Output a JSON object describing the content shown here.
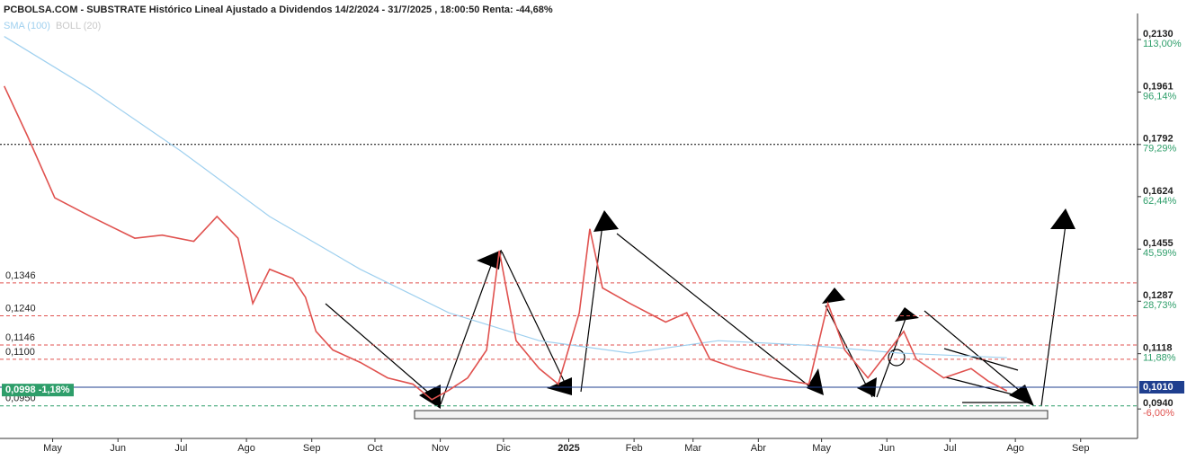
{
  "chart_data": {
    "type": "line",
    "title": "PCBOLSA.COM - SUBSTRATE Histórico Lineal Ajustado a Dividendos 14/2/2024 - 31/7/2025 , 18:00:50 Renta: -44,68%",
    "series": [
      {
        "name": "SMA (100)",
        "color": "#9fd0ef",
        "x": [
          -23,
          18,
          61,
          103,
          146,
          188,
          231,
          274,
          316,
          359,
          402,
          453
        ],
        "values": [
          0.214,
          0.197,
          0.177,
          0.156,
          0.139,
          0.125,
          0.116,
          0.112,
          0.116,
          0.1145,
          0.112,
          0.1105
        ]
      },
      {
        "name": "BOLL (20)",
        "color": "#c8c8c8",
        "x": [
          -23,
          -12,
          1,
          18,
          39,
          52,
          67,
          78,
          88,
          95,
          103,
          114,
          120,
          125,
          133,
          146,
          159,
          171,
          180,
          188,
          197,
          206,
          212,
          220,
          231,
          240,
          250,
          255,
          261,
          274,
          291,
          301,
          312,
          325,
          342,
          359,
          368,
          376,
          387,
          404,
          410,
          423,
          436,
          444,
          453
        ],
        "values": [
          0.198,
          0.182,
          0.162,
          0.156,
          0.149,
          0.15,
          0.148,
          0.156,
          0.149,
          0.128,
          0.139,
          0.136,
          0.13,
          0.119,
          0.113,
          0.109,
          0.104,
          0.102,
          0.097,
          0.1,
          0.104,
          0.113,
          0.145,
          0.116,
          0.107,
          0.102,
          0.125,
          0.152,
          0.133,
          0.128,
          0.122,
          0.125,
          0.11,
          0.107,
          0.104,
          0.102,
          0.128,
          0.113,
          0.104,
          0.119,
          0.11,
          0.104,
          0.107,
          0.103,
          0.0998
        ]
      }
    ],
    "price_color": "#e0524f",
    "xlim": [
      -25,
      515
    ],
    "xticks": [
      {
        "value": 0,
        "label": "May"
      },
      {
        "value": 31,
        "label": "Jun"
      },
      {
        "value": 61,
        "label": "Jul"
      },
      {
        "value": 92,
        "label": "Ago"
      },
      {
        "value": 123,
        "label": "Sep"
      },
      {
        "value": 153,
        "label": "Oct"
      },
      {
        "value": 184,
        "label": "Nov"
      },
      {
        "value": 214,
        "label": "Dic"
      },
      {
        "value": 245,
        "label": "2025"
      },
      {
        "value": 276,
        "label": "Feb"
      },
      {
        "value": 304,
        "label": "Mar"
      },
      {
        "value": 335,
        "label": "Abr"
      },
      {
        "value": 365,
        "label": "May"
      },
      {
        "value": 396,
        "label": "Jun"
      },
      {
        "value": 426,
        "label": "Jul"
      },
      {
        "value": 457,
        "label": "Ago"
      },
      {
        "value": 488,
        "label": "Sep"
      }
    ],
    "ylim": [
      0.0845,
      0.2214
    ],
    "yticks": [
      {
        "value": 0.213,
        "label": "0,2130",
        "pct": "113,00%",
        "color": "#2e9e6a"
      },
      {
        "value": 0.1961,
        "label": "0,1961",
        "pct": "96,14%",
        "color": "#2e9e6a"
      },
      {
        "value": 0.1792,
        "label": "0,1792",
        "pct": "79,29%",
        "color": "#2e9e6a"
      },
      {
        "value": 0.1624,
        "label": "0,1624",
        "pct": "62,44%",
        "color": "#2e9e6a"
      },
      {
        "value": 0.1455,
        "label": "0,1455",
        "pct": "45,59%",
        "color": "#2e9e6a"
      },
      {
        "value": 0.1287,
        "label": "0,1287",
        "pct": "28,73%",
        "color": "#2e9e6a"
      },
      {
        "value": 0.1118,
        "label": "0,1118",
        "pct": "11,88%",
        "color": "#2e9e6a"
      },
      {
        "value": 0.094,
        "label": "0,0940",
        "pct": "-6,00%",
        "color": "#e0524f"
      }
    ],
    "levels": [
      {
        "value": 0.1346,
        "label": "0,1346",
        "color": "#e0524f"
      },
      {
        "value": 0.124,
        "label": "0,1240",
        "color": "#e0524f"
      },
      {
        "value": 0.1146,
        "label": "0,1146",
        "color": "#e0524f"
      },
      {
        "value": 0.11,
        "label": "0,1100",
        "color": "#e0524f"
      },
      {
        "value": 0.095,
        "label": "0,0950",
        "color": "#2e9e6a"
      }
    ],
    "resistance": {
      "value": 0.1792,
      "color": "#000000"
    },
    "current": {
      "value": 0.0998,
      "label": "0,0998 -1,18%",
      "color": "#2e9e6a"
    },
    "last": {
      "value": 0.101,
      "label": "0,1010",
      "color": "#1f3f8f"
    }
  }
}
